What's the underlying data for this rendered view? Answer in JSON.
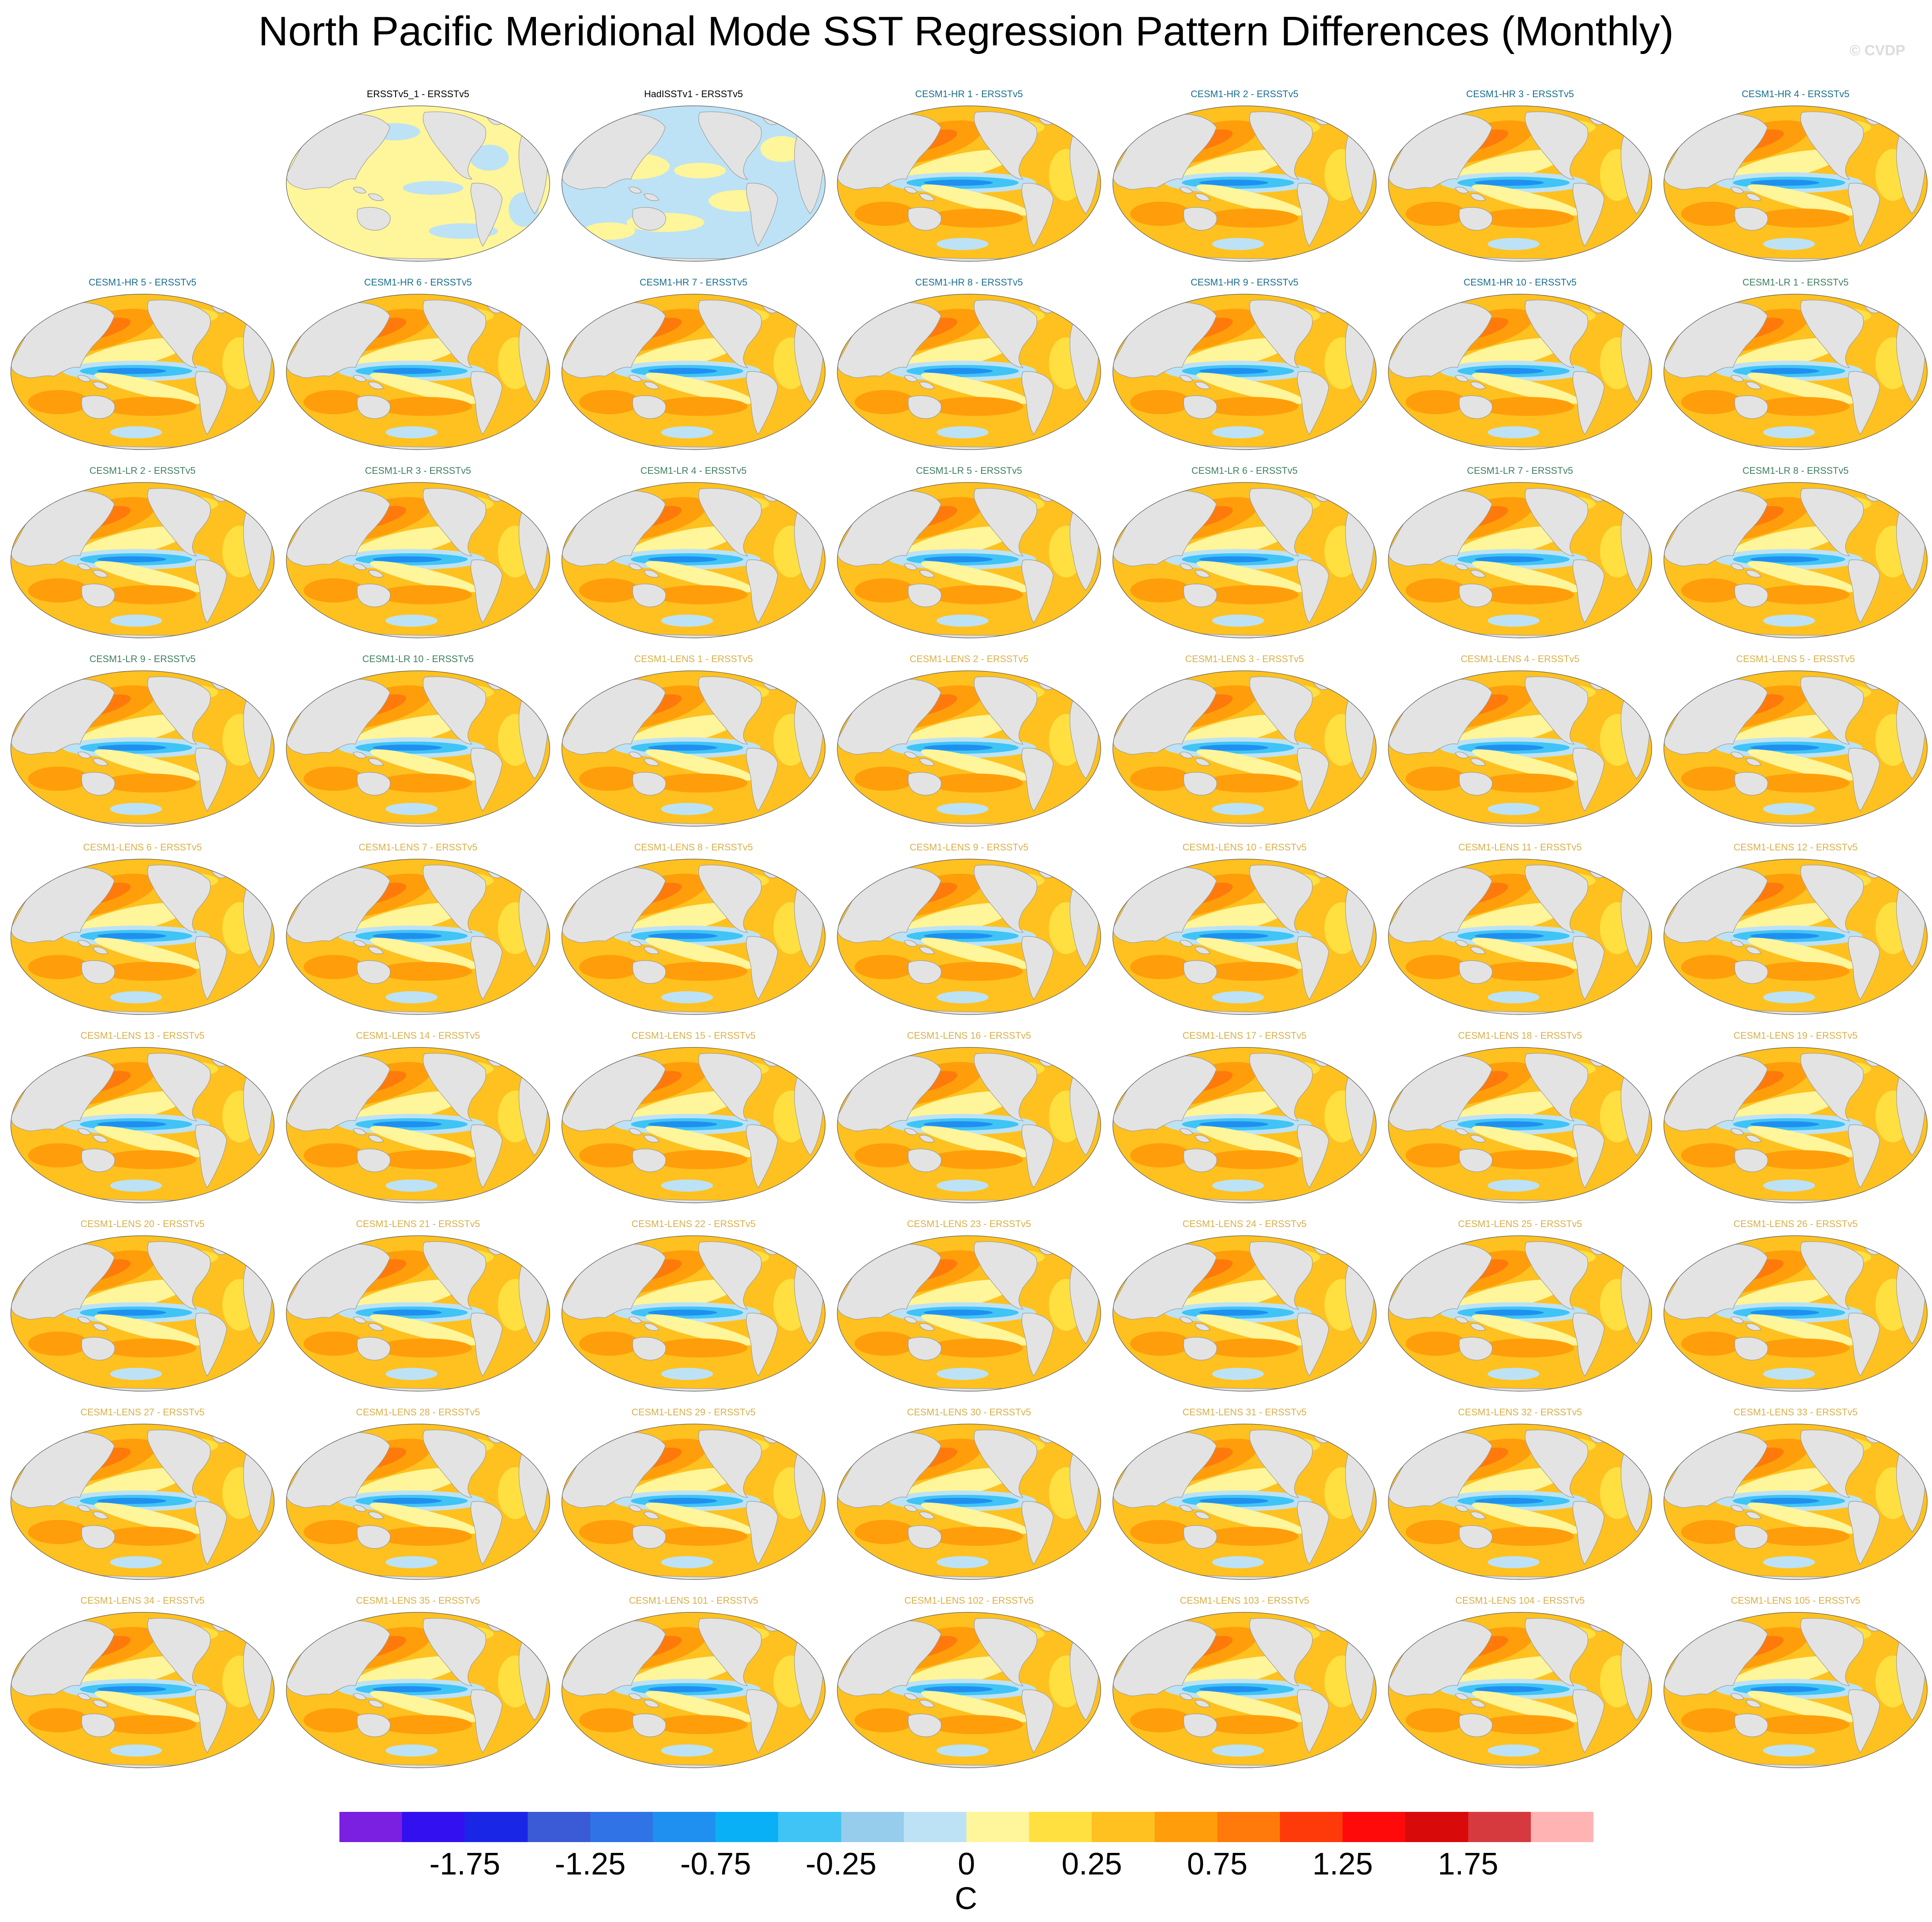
{
  "title": "North Pacific Meridional Mode SST Regression Pattern Differences (Monthly)",
  "watermark": "© CVDP",
  "colors": {
    "land": "#e3e3e3",
    "obs_label": "#000000",
    "hr_label": "#1a6e8f",
    "lr_label": "#3f7f5f",
    "lens_label": "#d9b04a"
  },
  "panels": [
    {
      "label": "ERSSTv5_1 - ERSSTv5",
      "group": "obs",
      "pattern": "obs1"
    },
    {
      "label": "HadISSTv1 - ERSSTv5",
      "group": "obs",
      "pattern": "obs2"
    },
    {
      "label": "CESM1-HR 1 - ERSSTv5",
      "group": "hr",
      "pattern": "model"
    },
    {
      "label": "CESM1-HR 2 - ERSSTv5",
      "group": "hr",
      "pattern": "model"
    },
    {
      "label": "CESM1-HR 3 - ERSSTv5",
      "group": "hr",
      "pattern": "model"
    },
    {
      "label": "CESM1-HR 4 - ERSSTv5",
      "group": "hr",
      "pattern": "model"
    },
    {
      "label": "CESM1-HR 5 - ERSSTv5",
      "group": "hr",
      "pattern": "model"
    },
    {
      "label": "CESM1-HR 6 - ERSSTv5",
      "group": "hr",
      "pattern": "model"
    },
    {
      "label": "CESM1-HR 7 - ERSSTv5",
      "group": "hr",
      "pattern": "model"
    },
    {
      "label": "CESM1-HR 8 - ERSSTv5",
      "group": "hr",
      "pattern": "model"
    },
    {
      "label": "CESM1-HR 9 - ERSSTv5",
      "group": "hr",
      "pattern": "model"
    },
    {
      "label": "CESM1-HR 10 - ERSSTv5",
      "group": "hr",
      "pattern": "model"
    },
    {
      "label": "CESM1-LR 1 - ERSSTv5",
      "group": "lr",
      "pattern": "model"
    },
    {
      "label": "CESM1-LR 2 - ERSSTv5",
      "group": "lr",
      "pattern": "model"
    },
    {
      "label": "CESM1-LR 3 - ERSSTv5",
      "group": "lr",
      "pattern": "model"
    },
    {
      "label": "CESM1-LR 4 - ERSSTv5",
      "group": "lr",
      "pattern": "model"
    },
    {
      "label": "CESM1-LR 5 - ERSSTv5",
      "group": "lr",
      "pattern": "model"
    },
    {
      "label": "CESM1-LR 6 - ERSSTv5",
      "group": "lr",
      "pattern": "model"
    },
    {
      "label": "CESM1-LR 7 - ERSSTv5",
      "group": "lr",
      "pattern": "model"
    },
    {
      "label": "CESM1-LR 8 - ERSSTv5",
      "group": "lr",
      "pattern": "model"
    },
    {
      "label": "CESM1-LR 9 - ERSSTv5",
      "group": "lr",
      "pattern": "model"
    },
    {
      "label": "CESM1-LR 10 - ERSSTv5",
      "group": "lr",
      "pattern": "model"
    },
    {
      "label": "CESM1-LENS 1 - ERSSTv5",
      "group": "lens",
      "pattern": "model"
    },
    {
      "label": "CESM1-LENS 2 - ERSSTv5",
      "group": "lens",
      "pattern": "model"
    },
    {
      "label": "CESM1-LENS 3 - ERSSTv5",
      "group": "lens",
      "pattern": "model"
    },
    {
      "label": "CESM1-LENS 4 - ERSSTv5",
      "group": "lens",
      "pattern": "model"
    },
    {
      "label": "CESM1-LENS 5 - ERSSTv5",
      "group": "lens",
      "pattern": "model"
    },
    {
      "label": "CESM1-LENS 6 - ERSSTv5",
      "group": "lens",
      "pattern": "model"
    },
    {
      "label": "CESM1-LENS 7 - ERSSTv5",
      "group": "lens",
      "pattern": "model"
    },
    {
      "label": "CESM1-LENS 8 - ERSSTv5",
      "group": "lens",
      "pattern": "model"
    },
    {
      "label": "CESM1-LENS 9 - ERSSTv5",
      "group": "lens",
      "pattern": "model"
    },
    {
      "label": "CESM1-LENS 10 - ERSSTv5",
      "group": "lens",
      "pattern": "model"
    },
    {
      "label": "CESM1-LENS 11 - ERSSTv5",
      "group": "lens",
      "pattern": "model"
    },
    {
      "label": "CESM1-LENS 12 - ERSSTv5",
      "group": "lens",
      "pattern": "model"
    },
    {
      "label": "CESM1-LENS 13 - ERSSTv5",
      "group": "lens",
      "pattern": "model"
    },
    {
      "label": "CESM1-LENS 14 - ERSSTv5",
      "group": "lens",
      "pattern": "model"
    },
    {
      "label": "CESM1-LENS 15 - ERSSTv5",
      "group": "lens",
      "pattern": "model"
    },
    {
      "label": "CESM1-LENS 16 - ERSSTv5",
      "group": "lens",
      "pattern": "model"
    },
    {
      "label": "CESM1-LENS 17 - ERSSTv5",
      "group": "lens",
      "pattern": "model"
    },
    {
      "label": "CESM1-LENS 18 - ERSSTv5",
      "group": "lens",
      "pattern": "model"
    },
    {
      "label": "CESM1-LENS 19 - ERSSTv5",
      "group": "lens",
      "pattern": "model"
    },
    {
      "label": "CESM1-LENS 20 - ERSSTv5",
      "group": "lens",
      "pattern": "model"
    },
    {
      "label": "CESM1-LENS 21 - ERSSTv5",
      "group": "lens",
      "pattern": "model"
    },
    {
      "label": "CESM1-LENS 22 - ERSSTv5",
      "group": "lens",
      "pattern": "model"
    },
    {
      "label": "CESM1-LENS 23 - ERSSTv5",
      "group": "lens",
      "pattern": "model"
    },
    {
      "label": "CESM1-LENS 24 - ERSSTv5",
      "group": "lens",
      "pattern": "model"
    },
    {
      "label": "CESM1-LENS 25 - ERSSTv5",
      "group": "lens",
      "pattern": "model"
    },
    {
      "label": "CESM1-LENS 26 - ERSSTv5",
      "group": "lens",
      "pattern": "model"
    },
    {
      "label": "CESM1-LENS 27 - ERSSTv5",
      "group": "lens",
      "pattern": "model"
    },
    {
      "label": "CESM1-LENS 28 - ERSSTv5",
      "group": "lens",
      "pattern": "model"
    },
    {
      "label": "CESM1-LENS 29 - ERSSTv5",
      "group": "lens",
      "pattern": "model"
    },
    {
      "label": "CESM1-LENS 30 - ERSSTv5",
      "group": "lens",
      "pattern": "model"
    },
    {
      "label": "CESM1-LENS 31 - ERSSTv5",
      "group": "lens",
      "pattern": "model"
    },
    {
      "label": "CESM1-LENS 32 - ERSSTv5",
      "group": "lens",
      "pattern": "model"
    },
    {
      "label": "CESM1-LENS 33 - ERSSTv5",
      "group": "lens",
      "pattern": "model"
    },
    {
      "label": "CESM1-LENS 34 - ERSSTv5",
      "group": "lens",
      "pattern": "model"
    },
    {
      "label": "CESM1-LENS 35 - ERSSTv5",
      "group": "lens",
      "pattern": "model"
    },
    {
      "label": "CESM1-LENS 101 - ERSSTv5",
      "group": "lens",
      "pattern": "model"
    },
    {
      "label": "CESM1-LENS 102 - ERSSTv5",
      "group": "lens",
      "pattern": "model"
    },
    {
      "label": "CESM1-LENS 103 - ERSSTv5",
      "group": "lens",
      "pattern": "model"
    },
    {
      "label": "CESM1-LENS 104 - ERSSTv5",
      "group": "lens",
      "pattern": "model"
    },
    {
      "label": "CESM1-LENS 105 - ERSSTv5",
      "group": "lens",
      "pattern": "model"
    }
  ],
  "colorbar": {
    "colors": [
      "#7b1fe0",
      "#3210f0",
      "#1a26e6",
      "#3b5ad6",
      "#2f73e6",
      "#1f90f0",
      "#0ab0f5",
      "#40c4f5",
      "#96ccec",
      "#bde2f5",
      "#fff59a",
      "#ffe040",
      "#ffc11f",
      "#ff9e0a",
      "#ff7a0a",
      "#ff3a0a",
      "#ff0a0a",
      "#d80a0a",
      "#d63a3f",
      "#ffb3b3"
    ],
    "ticks": [
      "-1.75",
      "-1.25",
      "-0.75",
      "-0.25",
      "0",
      "0.25",
      "0.75",
      "1.25",
      "1.75"
    ],
    "units": "C"
  }
}
